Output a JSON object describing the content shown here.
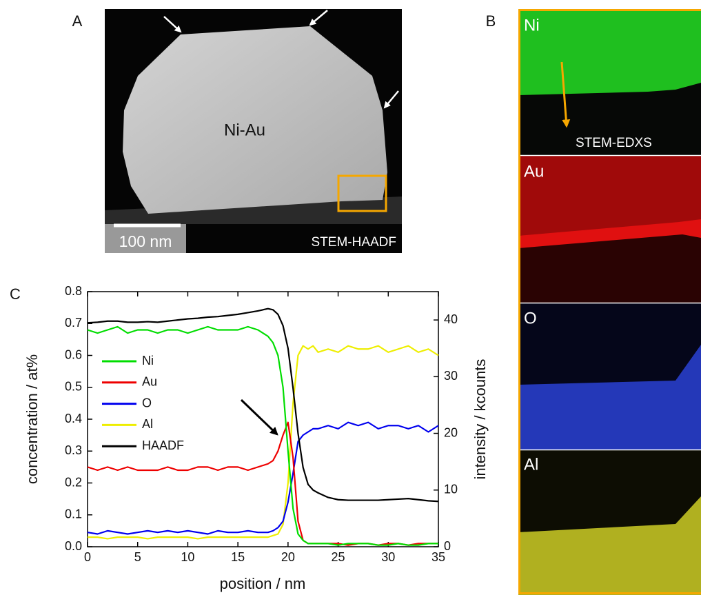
{
  "panel_labels": [
    "A",
    "B",
    "C"
  ],
  "panel_a": {
    "label": "Ni-Au",
    "scale_bar": "100 nm",
    "method": "STEM-HAADF"
  },
  "panel_b": {
    "elements": [
      "Ni",
      "Au",
      "O",
      "Al"
    ],
    "method": "STEM-EDXS"
  },
  "chart_data": {
    "type": "line",
    "x_label": "position / nm",
    "y_label": "concentration / at%",
    "y2_label": "intensity / kcounts",
    "x": [
      0,
      1,
      2,
      3,
      4,
      5,
      6,
      7,
      8,
      9,
      10,
      11,
      12,
      13,
      14,
      15,
      16,
      17,
      18,
      18.5,
      19,
      19.5,
      20,
      20.5,
      21,
      21.5,
      22,
      22.5,
      23,
      24,
      25,
      26,
      27,
      28,
      29,
      30,
      31,
      32,
      33,
      34,
      35
    ],
    "series": [
      {
        "name": "Ni",
        "color": "#00dd00",
        "values": [
          0.68,
          0.67,
          0.68,
          0.69,
          0.67,
          0.68,
          0.68,
          0.67,
          0.68,
          0.68,
          0.67,
          0.68,
          0.69,
          0.68,
          0.68,
          0.68,
          0.69,
          0.68,
          0.66,
          0.64,
          0.6,
          0.5,
          0.3,
          0.12,
          0.04,
          0.02,
          0.01,
          0.01,
          0.01,
          0.01,
          0.005,
          0.01,
          0.01,
          0.01,
          0.005,
          0.005,
          0.01,
          0.005,
          0.005,
          0.01,
          0.01
        ]
      },
      {
        "name": "Au",
        "color": "#ee0000",
        "values": [
          0.25,
          0.24,
          0.25,
          0.24,
          0.25,
          0.24,
          0.24,
          0.24,
          0.25,
          0.24,
          0.24,
          0.25,
          0.25,
          0.24,
          0.25,
          0.25,
          0.24,
          0.25,
          0.26,
          0.27,
          0.3,
          0.35,
          0.39,
          0.28,
          0.08,
          0.02,
          0.01,
          0.01,
          0.01,
          0.01,
          0.01,
          0.005,
          0.01,
          0.01,
          0.005,
          0.01,
          0.01,
          0.005,
          0.01,
          0.01,
          0.01
        ]
      },
      {
        "name": "O",
        "color": "#0000ee",
        "values": [
          0.045,
          0.04,
          0.05,
          0.045,
          0.04,
          0.045,
          0.05,
          0.045,
          0.05,
          0.045,
          0.05,
          0.045,
          0.04,
          0.05,
          0.045,
          0.045,
          0.05,
          0.045,
          0.045,
          0.05,
          0.06,
          0.08,
          0.14,
          0.23,
          0.33,
          0.35,
          0.36,
          0.37,
          0.37,
          0.38,
          0.37,
          0.39,
          0.38,
          0.39,
          0.37,
          0.38,
          0.38,
          0.37,
          0.38,
          0.36,
          0.38
        ]
      },
      {
        "name": "Al",
        "color": "#eeee00",
        "values": [
          0.03,
          0.03,
          0.025,
          0.03,
          0.03,
          0.03,
          0.025,
          0.03,
          0.03,
          0.03,
          0.03,
          0.025,
          0.03,
          0.03,
          0.03,
          0.03,
          0.03,
          0.03,
          0.03,
          0.035,
          0.04,
          0.07,
          0.2,
          0.45,
          0.6,
          0.63,
          0.62,
          0.63,
          0.61,
          0.62,
          0.61,
          0.63,
          0.62,
          0.62,
          0.63,
          0.61,
          0.62,
          0.63,
          0.61,
          0.62,
          0.6
        ]
      },
      {
        "name": "HAADF",
        "color": "#000000",
        "axis": "y2",
        "values": [
          39.5,
          39.6,
          39.8,
          39.8,
          39.6,
          39.6,
          39.7,
          39.6,
          39.8,
          40,
          40.2,
          40.3,
          40.5,
          40.6,
          40.8,
          41,
          41.3,
          41.6,
          42,
          41.8,
          41,
          39,
          35,
          28,
          20,
          14,
          11,
          10,
          9.5,
          8.7,
          8.3,
          8.2,
          8.2,
          8.2,
          8.2,
          8.3,
          8.4,
          8.5,
          8.3,
          8.1,
          8
        ]
      }
    ],
    "xlim": [
      0,
      35
    ],
    "xticks": [
      0,
      5,
      10,
      15,
      20,
      25,
      30,
      35
    ],
    "ylim": [
      0,
      0.8
    ],
    "yticks": [
      {
        "value": 0,
        "label": "0.0"
      },
      0.1,
      0.2,
      0.3,
      0.4,
      0.5,
      0.6,
      0.7,
      0.8
    ],
    "y2lim": [
      0,
      45
    ],
    "y2ticks": [
      0,
      10,
      20,
      30,
      40
    ]
  }
}
